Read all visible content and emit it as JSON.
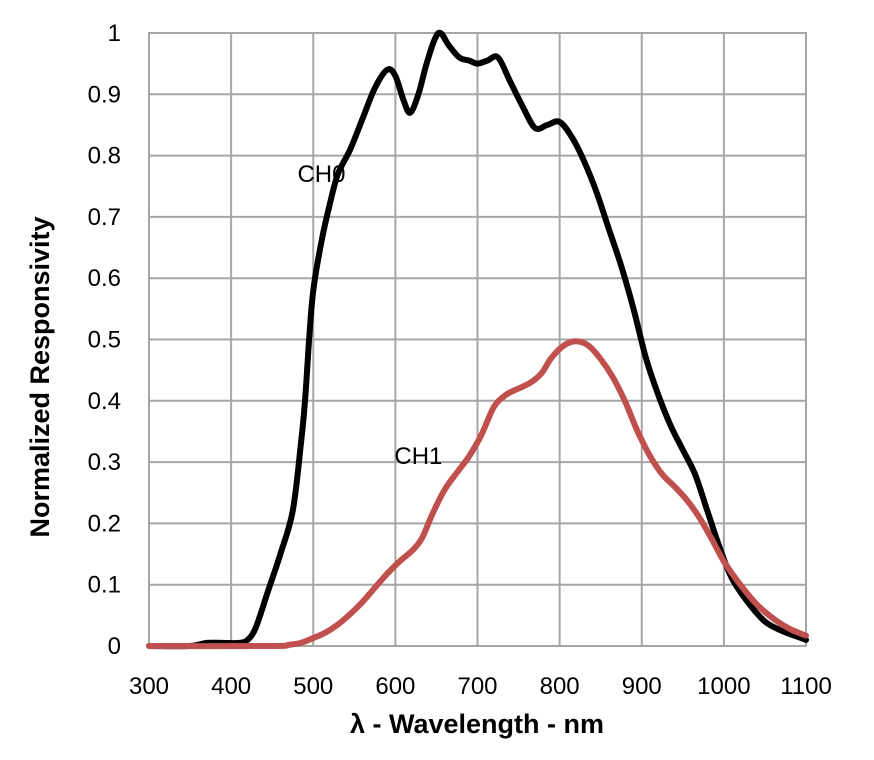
{
  "chart_data": {
    "type": "line",
    "title": "",
    "xlabel": "λ - Wavelength - nm",
    "ylabel": "Normalized Responsivity",
    "xlim": [
      300,
      1100
    ],
    "ylim": [
      0,
      1
    ],
    "xticks": [
      300,
      400,
      500,
      600,
      700,
      800,
      900,
      1000,
      1100
    ],
    "yticks": [
      0,
      0.1,
      0.2,
      0.3,
      0.4,
      0.5,
      0.6,
      0.7,
      0.8,
      0.9,
      1
    ],
    "ytick_labels": [
      "0",
      "0.1",
      "0.2",
      "0.3",
      "0.4",
      "0.5",
      "0.6",
      "0.7",
      "0.8",
      "0.9",
      "1"
    ],
    "xtick_labels": [
      "300",
      "400",
      "500",
      "600",
      "700",
      "800",
      "900",
      "1000",
      "1100"
    ],
    "grid": true,
    "legend": "none",
    "series": [
      {
        "name": "CH0",
        "color": "#000000",
        "label_at": [
          510,
          0.77
        ],
        "points": [
          [
            300,
            0.0
          ],
          [
            350,
            0.0
          ],
          [
            370,
            0.005
          ],
          [
            390,
            0.005
          ],
          [
            410,
            0.005
          ],
          [
            420,
            0.01
          ],
          [
            430,
            0.03
          ],
          [
            445,
            0.09
          ],
          [
            460,
            0.15
          ],
          [
            475,
            0.22
          ],
          [
            485,
            0.33
          ],
          [
            490,
            0.4
          ],
          [
            495,
            0.5
          ],
          [
            500,
            0.58
          ],
          [
            510,
            0.66
          ],
          [
            520,
            0.72
          ],
          [
            530,
            0.77
          ],
          [
            545,
            0.81
          ],
          [
            560,
            0.86
          ],
          [
            575,
            0.91
          ],
          [
            590,
            0.94
          ],
          [
            600,
            0.93
          ],
          [
            610,
            0.89
          ],
          [
            618,
            0.87
          ],
          [
            628,
            0.9
          ],
          [
            638,
            0.95
          ],
          [
            648,
            0.99
          ],
          [
            655,
            1.0
          ],
          [
            665,
            0.98
          ],
          [
            678,
            0.96
          ],
          [
            690,
            0.955
          ],
          [
            700,
            0.95
          ],
          [
            712,
            0.955
          ],
          [
            725,
            0.96
          ],
          [
            740,
            0.92
          ],
          [
            755,
            0.88
          ],
          [
            770,
            0.845
          ],
          [
            785,
            0.85
          ],
          [
            800,
            0.855
          ],
          [
            815,
            0.83
          ],
          [
            830,
            0.79
          ],
          [
            845,
            0.74
          ],
          [
            860,
            0.68
          ],
          [
            875,
            0.62
          ],
          [
            890,
            0.55
          ],
          [
            905,
            0.47
          ],
          [
            920,
            0.41
          ],
          [
            935,
            0.36
          ],
          [
            950,
            0.32
          ],
          [
            965,
            0.28
          ],
          [
            980,
            0.22
          ],
          [
            995,
            0.16
          ],
          [
            1010,
            0.11
          ],
          [
            1030,
            0.07
          ],
          [
            1050,
            0.04
          ],
          [
            1070,
            0.025
          ],
          [
            1090,
            0.015
          ],
          [
            1100,
            0.01
          ]
        ]
      },
      {
        "name": "CH1",
        "color": "#c0504d",
        "label_at": [
          628,
          0.31
        ],
        "points": [
          [
            300,
            0.0
          ],
          [
            450,
            0.0
          ],
          [
            470,
            0.002
          ],
          [
            485,
            0.005
          ],
          [
            500,
            0.013
          ],
          [
            515,
            0.022
          ],
          [
            530,
            0.035
          ],
          [
            545,
            0.052
          ],
          [
            560,
            0.072
          ],
          [
            575,
            0.095
          ],
          [
            590,
            0.118
          ],
          [
            605,
            0.138
          ],
          [
            620,
            0.155
          ],
          [
            632,
            0.175
          ],
          [
            645,
            0.215
          ],
          [
            660,
            0.255
          ],
          [
            675,
            0.283
          ],
          [
            690,
            0.31
          ],
          [
            705,
            0.345
          ],
          [
            720,
            0.39
          ],
          [
            735,
            0.41
          ],
          [
            750,
            0.42
          ],
          [
            765,
            0.43
          ],
          [
            778,
            0.445
          ],
          [
            790,
            0.47
          ],
          [
            805,
            0.49
          ],
          [
            820,
            0.497
          ],
          [
            835,
            0.49
          ],
          [
            850,
            0.468
          ],
          [
            865,
            0.438
          ],
          [
            880,
            0.398
          ],
          [
            895,
            0.35
          ],
          [
            910,
            0.31
          ],
          [
            925,
            0.28
          ],
          [
            940,
            0.26
          ],
          [
            955,
            0.238
          ],
          [
            970,
            0.21
          ],
          [
            985,
            0.175
          ],
          [
            1000,
            0.138
          ],
          [
            1020,
            0.1
          ],
          [
            1040,
            0.068
          ],
          [
            1060,
            0.045
          ],
          [
            1080,
            0.028
          ],
          [
            1100,
            0.017
          ]
        ]
      }
    ]
  }
}
